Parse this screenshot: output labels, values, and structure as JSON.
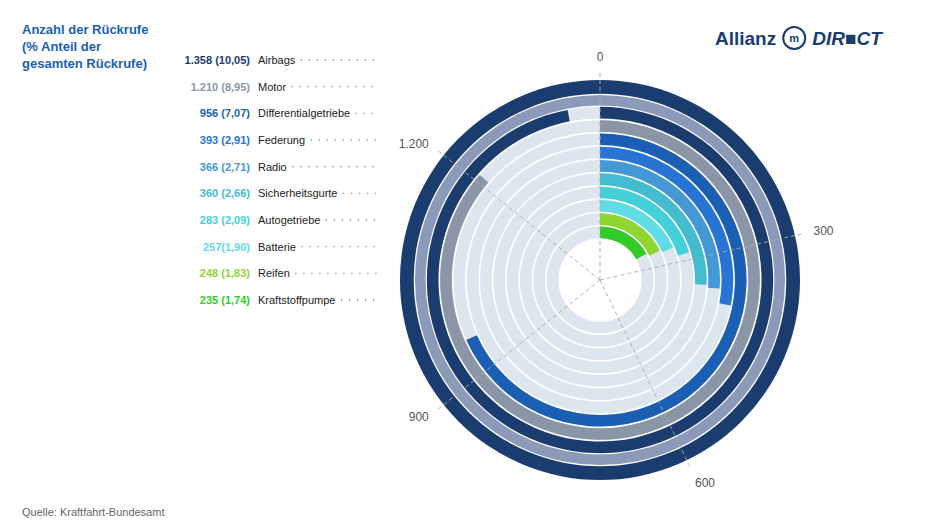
{
  "chart_data": {
    "type": "radial_bar",
    "title": "Anzahl der Rückrufe (% Anteil der gesamten Rückrufe)",
    "categories": [
      "Airbags",
      "Motor",
      "Differentialgetriebe",
      "Federung",
      "Radio",
      "Sicherheitsgurte",
      "Autogetriebe",
      "Batterie",
      "Reifen",
      "Kraftstoffpumpe"
    ],
    "values": [
      1358,
      1210,
      956,
      393,
      366,
      360,
      283,
      257,
      248,
      235
    ],
    "value_labels": [
      "1.358 (10,05)",
      "1.210 (8,95)",
      "956 (7,07)",
      "393 (2,91)",
      "366 (2,71)",
      "360 (2,66)",
      "283 (2,09)",
      "257(1,90)",
      "248 (1,83)",
      "235 (1,74)"
    ],
    "colors": [
      "#1b3c6e",
      "#8a96a8",
      "#1a5fb4",
      "#2874d4",
      "#4499d4",
      "#44bcd0",
      "#44d0d8",
      "#60dce4",
      "#8ed630",
      "#32cc28"
    ],
    "ylim": [
      0,
      1400
    ],
    "yticks": [
      0,
      300,
      600,
      900,
      {
        "value": 1200,
        "label": "1.200"
      }
    ],
    "grid": true,
    "data_labels": true,
    "annotations": [
      "Quelle: Kraftfahrt-Bundesamt",
      "Allianz",
      "m",
      "DIR■CT"
    ]
  }
}
